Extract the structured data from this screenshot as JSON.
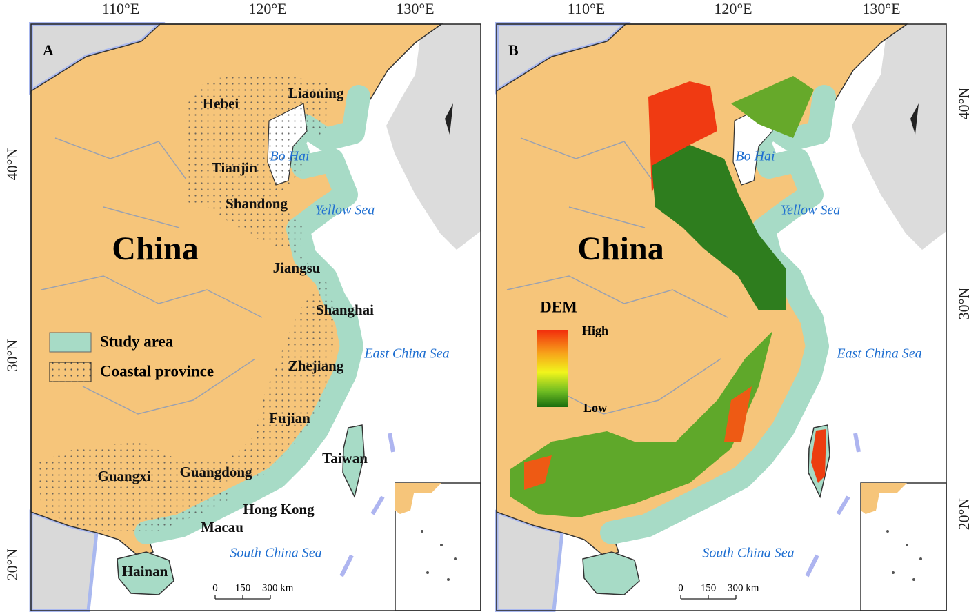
{
  "panels": [
    {
      "label": "A",
      "longitude_ticks": [
        "110°E",
        "120°E",
        "130°E"
      ],
      "latitude_ticks": [
        "40°N",
        "30°N",
        "20°N"
      ],
      "country": "China",
      "seas": [
        "Bo Hai",
        "Yellow Sea",
        "East China Sea",
        "South China Sea"
      ],
      "regions": [
        "Liaoning",
        "Hebei",
        "Tianjin",
        "Shandong",
        "Jiangsu",
        "Shanghai",
        "Zhejiang",
        "Fujian",
        "Taiwan",
        "Guangxi",
        "Guangdong",
        "Hong Kong",
        "Macau",
        "Hainan"
      ],
      "legend": [
        "Study area",
        "Coastal province"
      ],
      "scale_bar": [
        "0",
        "150",
        "300 km"
      ]
    },
    {
      "label": "B",
      "longitude_ticks": [
        "110°E",
        "120°E",
        "130°E"
      ],
      "latitude_ticks": [
        "40°N",
        "30°N",
        "20°N"
      ],
      "country": "China",
      "seas": [
        "Bo Hai",
        "Yellow Sea",
        "East China Sea",
        "South China Sea"
      ],
      "legend": {
        "title": "DEM",
        "high": "High",
        "low": "Low"
      },
      "scale_bar": [
        "0",
        "150",
        "300 km"
      ]
    }
  ]
}
